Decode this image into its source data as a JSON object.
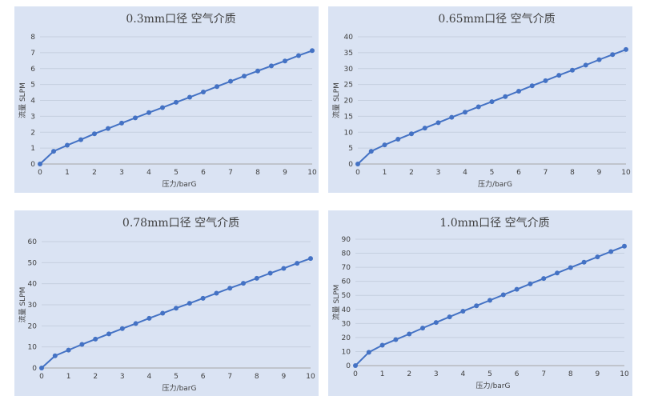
{
  "colors": {
    "panel_bg": "#dae3f3",
    "series": "#4472c4",
    "grid": "#c5cfdf",
    "text": "#404040"
  },
  "chart_data": [
    {
      "type": "line",
      "title": "0.3mm口径  空气介质",
      "xlabel": "压力/barG",
      "ylabel": "流量 SLPM",
      "xlim": [
        0,
        10
      ],
      "ylim": [
        0,
        8
      ],
      "xticks": [
        0,
        1,
        2,
        3,
        4,
        5,
        6,
        7,
        8,
        9,
        10
      ],
      "yticks": [
        0,
        1,
        2,
        3,
        4,
        5,
        6,
        7,
        8
      ],
      "grid": true,
      "x": [
        0,
        0.5,
        1,
        1.5,
        2,
        2.5,
        3,
        3.5,
        4,
        4.5,
        5,
        5.5,
        6,
        6.5,
        7,
        7.5,
        8,
        8.5,
        9,
        9.5,
        10
      ],
      "series": [
        {
          "values": [
            0,
            0.8,
            1.18,
            1.53,
            1.9,
            2.23,
            2.57,
            2.9,
            3.23,
            3.55,
            3.88,
            4.2,
            4.53,
            4.87,
            5.2,
            5.53,
            5.85,
            6.17,
            6.48,
            6.82,
            7.13
          ]
        }
      ]
    },
    {
      "type": "line",
      "title": "0.65mm口径  空气介质",
      "xlabel": "压力/barG",
      "ylabel": "流量 SLPM",
      "xlim": [
        0,
        10
      ],
      "ylim": [
        0,
        40
      ],
      "xticks": [
        0,
        1,
        2,
        3,
        4,
        5,
        6,
        7,
        8,
        9,
        10
      ],
      "yticks": [
        0,
        5,
        10,
        15,
        20,
        25,
        30,
        35,
        40
      ],
      "grid": true,
      "x": [
        0,
        0.5,
        1,
        1.5,
        2,
        2.5,
        3,
        3.5,
        4,
        4.5,
        5,
        5.5,
        6,
        6.5,
        7,
        7.5,
        8,
        8.5,
        9,
        9.5,
        10
      ],
      "series": [
        {
          "values": [
            0,
            4,
            6,
            7.8,
            9.5,
            11.3,
            13,
            14.7,
            16.3,
            18,
            19.6,
            21.2,
            22.9,
            24.6,
            26.2,
            27.9,
            29.5,
            31.1,
            32.8,
            34.4,
            36
          ]
        }
      ]
    },
    {
      "type": "line",
      "title": "0.78mm口径  空气介质",
      "xlabel": "压力/barG",
      "ylabel": "流量 SLPM",
      "xlim": [
        0,
        10
      ],
      "ylim": [
        0,
        60
      ],
      "xticks": [
        0,
        1,
        2,
        3,
        4,
        5,
        6,
        7,
        8,
        9,
        10
      ],
      "yticks": [
        0,
        10,
        20,
        30,
        40,
        50,
        60
      ],
      "grid": true,
      "x": [
        0,
        0.5,
        1,
        1.5,
        2,
        2.5,
        3,
        3.5,
        4,
        4.5,
        5,
        5.5,
        6,
        6.5,
        7,
        7.5,
        8,
        8.5,
        9,
        9.5,
        10
      ],
      "series": [
        {
          "values": [
            0,
            5.8,
            8.5,
            11.2,
            13.7,
            16.2,
            18.7,
            21.1,
            23.6,
            26,
            28.4,
            30.7,
            33.1,
            35.5,
            37.9,
            40.2,
            42.6,
            45,
            47.3,
            49.7,
            52
          ]
        }
      ]
    },
    {
      "type": "line",
      "title": "1.0mm口径  空气介质",
      "xlabel": "压力/barG",
      "ylabel": "流量 SLPM",
      "xlim": [
        0,
        10
      ],
      "ylim": [
        0,
        90
      ],
      "xticks": [
        0,
        1,
        2,
        3,
        4,
        5,
        6,
        7,
        8,
        9,
        10
      ],
      "yticks": [
        0,
        10,
        20,
        30,
        40,
        50,
        60,
        70,
        80,
        90
      ],
      "grid": true,
      "x": [
        0,
        0.5,
        1,
        1.5,
        2,
        2.5,
        3,
        3.5,
        4,
        4.5,
        5,
        5.5,
        6,
        6.5,
        7,
        7.5,
        8,
        8.5,
        9,
        9.5,
        10
      ],
      "series": [
        {
          "values": [
            0,
            9.5,
            14.5,
            18.5,
            22.5,
            26.7,
            30.7,
            34.7,
            38.7,
            42.6,
            46.5,
            50.4,
            54.3,
            58.2,
            62,
            65.9,
            69.8,
            73.6,
            77.4,
            81.2,
            85
          ]
        }
      ]
    }
  ]
}
